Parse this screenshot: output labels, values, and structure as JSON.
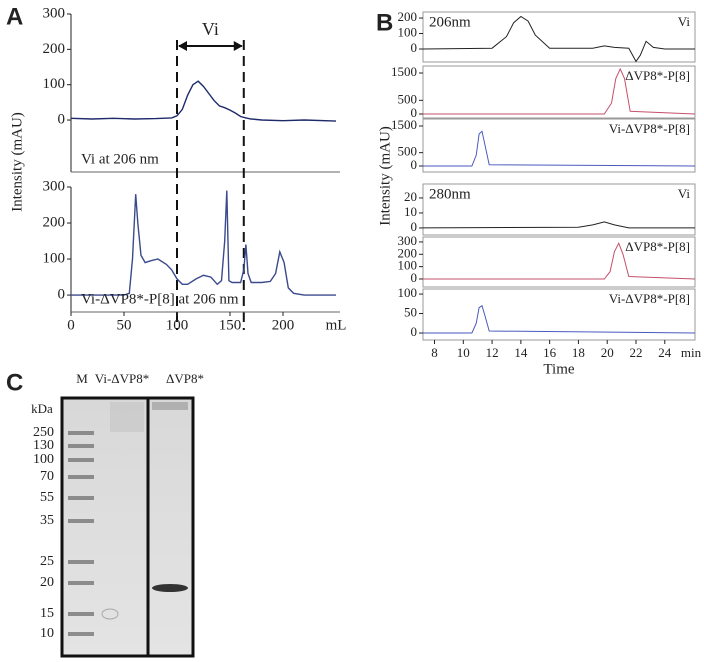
{
  "panel_labels": [
    "A",
    "B",
    "C"
  ],
  "chart_data": [
    {
      "type": "line",
      "ylabel": "Intensity (mAU)",
      "annotation": "Vi at 206 nm",
      "range_label": "Vi",
      "range": [
        100,
        163
      ],
      "xlim": [
        0,
        250
      ],
      "ylim": [
        -147,
        300
      ],
      "yticks": [
        0,
        100,
        200,
        300
      ],
      "x": [
        0,
        20,
        40,
        60,
        80,
        95,
        100,
        105,
        110,
        115,
        120,
        125,
        130,
        135,
        140,
        145,
        150,
        155,
        160,
        165,
        170,
        180,
        200,
        220,
        250
      ],
      "series": [
        {
          "color": "#1f2a6b",
          "values": [
            5,
            3,
            5,
            3,
            4,
            6,
            12,
            30,
            70,
            100,
            110,
            95,
            75,
            55,
            40,
            35,
            28,
            20,
            10,
            6,
            3,
            0,
            -2,
            0,
            -3
          ]
        }
      ]
    },
    {
      "type": "line",
      "annotation": "Vi-ΔVP8*-P[8] at 206 nm",
      "xlabel": "mL",
      "xlim": [
        0,
        250
      ],
      "ylim": [
        -47,
        300
      ],
      "yticks": [
        0,
        100,
        200,
        300
      ],
      "xticks": [
        0,
        50,
        100,
        150,
        200
      ],
      "x": [
        0,
        50,
        55,
        58,
        61,
        63,
        66,
        70,
        75,
        82,
        90,
        95,
        100,
        105,
        110,
        118,
        125,
        132,
        138,
        142,
        145,
        147,
        149,
        152,
        160,
        163,
        165,
        167,
        170,
        180,
        188,
        193,
        197,
        201,
        205,
        210,
        220,
        250
      ],
      "series": [
        {
          "color": "#3a4a8c",
          "values": [
            0,
            0,
            5,
            100,
            280,
            200,
            110,
            90,
            95,
            100,
            85,
            70,
            45,
            30,
            30,
            45,
            55,
            50,
            30,
            40,
            150,
            290,
            40,
            35,
            35,
            70,
            140,
            60,
            35,
            35,
            38,
            60,
            120,
            90,
            20,
            5,
            0,
            0
          ]
        }
      ]
    },
    {
      "type": "line",
      "ylabel": "Intensity (mAU)",
      "wavelength": "206nm",
      "label": "Vi",
      "xlim": [
        7.2,
        26.1
      ],
      "ylim": [
        -84,
        239
      ],
      "yticks": [
        0,
        100,
        200
      ],
      "x": [
        7.2,
        12,
        13,
        13.5,
        14,
        14.5,
        15,
        16,
        19,
        19.8,
        20.5,
        21.5,
        22,
        22.3,
        22.7,
        23.2,
        24,
        26.1
      ],
      "series": [
        {
          "color": "#222222",
          "values": [
            0,
            5,
            80,
            170,
            210,
            180,
            90,
            5,
            5,
            20,
            10,
            5,
            -80,
            -40,
            50,
            10,
            0,
            0
          ]
        }
      ]
    },
    {
      "type": "line",
      "label": "ΔVP8*-P[8]",
      "xlim": [
        7.2,
        26.1
      ],
      "ylim": [
        -146,
        1756
      ],
      "yticks": [
        0,
        500,
        1500
      ],
      "x": [
        7.2,
        19.8,
        20.3,
        20.6,
        20.9,
        21.2,
        21.6,
        26.1
      ],
      "series": [
        {
          "color": "#c44f6a",
          "values": [
            0,
            0,
            400,
            1300,
            1650,
            1300,
            100,
            0
          ]
        }
      ]
    },
    {
      "type": "line",
      "label": "Vi-ΔVP8*-P[8]",
      "xlim": [
        7.2,
        26.1
      ],
      "ylim": [
        -225,
        1762
      ],
      "yticks": [
        0,
        500,
        1500
      ],
      "x": [
        7.2,
        10.6,
        10.9,
        11.1,
        11.3,
        11.5,
        11.8,
        26.1
      ],
      "series": [
        {
          "color": "#4a5abd",
          "values": [
            0,
            0,
            400,
            1200,
            1300,
            800,
            50,
            0
          ]
        }
      ]
    },
    {
      "type": "line",
      "wavelength": "280nm",
      "label": "Vi",
      "xlim": [
        7.2,
        26.1
      ],
      "ylim": [
        -4.7,
        29.3
      ],
      "yticks": [
        0,
        10,
        20
      ],
      "x": [
        7.2,
        18,
        19,
        19.8,
        20.5,
        21.5,
        26.1
      ],
      "series": [
        {
          "color": "#222222",
          "values": [
            0,
            0.5,
            2,
            4,
            2,
            0,
            0
          ]
        }
      ]
    },
    {
      "type": "line",
      "label": "ΔVP8*-P[8]",
      "xlim": [
        7.2,
        26.1
      ],
      "ylim": [
        -65,
        340
      ],
      "yticks": [
        0,
        100,
        200,
        300
      ],
      "x": [
        7.2,
        19.8,
        20.2,
        20.5,
        20.8,
        21.1,
        21.5,
        26.1
      ],
      "series": [
        {
          "color": "#c44f6a",
          "values": [
            0,
            0,
            60,
            220,
            290,
            200,
            20,
            0
          ]
        }
      ]
    },
    {
      "type": "line",
      "label": "Vi-ΔVP8*-P[8]",
      "xlabel": "Time",
      "x_unit": "min",
      "xlim": [
        7.2,
        26.1
      ],
      "ylim": [
        -18,
        113
      ],
      "yticks": [
        0,
        50,
        100
      ],
      "xticks": [
        8,
        10,
        12,
        14,
        16,
        18,
        20,
        22,
        24
      ],
      "x": [
        7.2,
        10.6,
        10.9,
        11.1,
        11.3,
        11.5,
        11.8,
        26.1
      ],
      "series": [
        {
          "color": "#4a5abd",
          "values": [
            0,
            0,
            25,
            65,
            70,
            45,
            5,
            0
          ]
        }
      ]
    }
  ],
  "gel": {
    "kda_label": "kDa",
    "lanes": [
      "M",
      "Vi-ΔVP8*",
      "ΔVP8*"
    ],
    "markers": [
      250,
      130,
      100,
      70,
      55,
      35,
      25,
      20,
      15,
      10
    ]
  }
}
